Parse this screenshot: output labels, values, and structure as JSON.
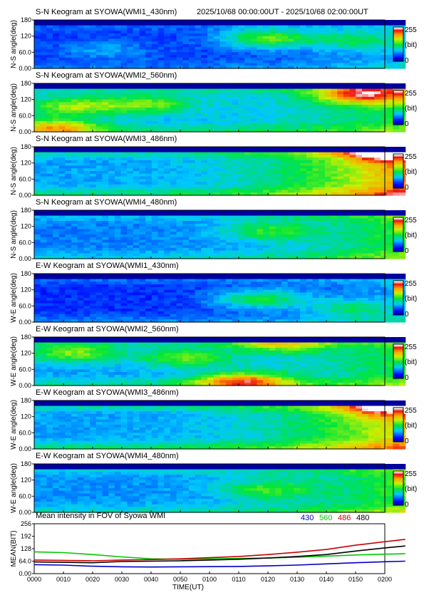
{
  "header": {
    "time_range": "2025/10/68 00:00:00UT - 2025/10/68 02:00:00UT"
  },
  "colors": {
    "w430": "#0000c8",
    "w560": "#00c800",
    "w486": "#c80000",
    "w480": "#000000"
  },
  "chart_data": [
    {
      "type": "heatmap",
      "title": "S-N Keogram at SYOWA(WMI1_430nm)",
      "ylabel": "N-S angle(deg)",
      "yticks": [
        "180",
        "120",
        "60.0",
        "0.00"
      ],
      "ylim": [
        0,
        180
      ],
      "colorbar": {
        "min_label": "0",
        "max_label": "255",
        "unit": "(bit)"
      },
      "data_end_minute": 127,
      "profile": {
        "base": 0.18,
        "edge": 0.08,
        "late": 0.15,
        "events": [
          [
            0.62,
            0.65,
            0.35
          ],
          [
            0.18,
            0.4,
            0.12
          ],
          [
            0.85,
            0.6,
            0.2
          ]
        ]
      }
    },
    {
      "type": "heatmap",
      "title": "S-N Keogram at SYOWA(WMI2_560nm)",
      "ylabel": "N-S angle(deg)",
      "yticks": [
        "180",
        "120",
        "60.0",
        "0.00"
      ],
      "ylim": [
        0,
        180
      ],
      "colorbar": {
        "min_label": "0",
        "max_label": "255",
        "unit": "(bit)"
      },
      "data_end_minute": 127,
      "profile": {
        "base": 0.32,
        "edge": 0.14,
        "late": 0.2,
        "events": [
          [
            0.1,
            0.55,
            0.3
          ],
          [
            0.3,
            0.6,
            0.25
          ],
          [
            0.88,
            0.8,
            0.5
          ],
          [
            0.05,
            0.1,
            0.4
          ]
        ]
      }
    },
    {
      "type": "heatmap",
      "title": "S-N Keogram at SYOWA(WMI3_486nm)",
      "ylabel": "N-S angle(deg)",
      "yticks": [
        "180",
        "120",
        "60.0",
        "0.00"
      ],
      "ylim": [
        0,
        180
      ],
      "colorbar": {
        "min_label": "0",
        "max_label": "255",
        "unit": "(bit)"
      },
      "data_end_minute": 127,
      "profile": {
        "base": 0.3,
        "edge": 0.18,
        "late": 0.55,
        "events": [
          [
            0.95,
            0.95,
            0.5
          ]
        ]
      }
    },
    {
      "type": "heatmap",
      "title": "S-N Keogram at SYOWA(WMI4_480nm)",
      "ylabel": "N-S angle(deg)",
      "yticks": [
        "180",
        "120",
        "60.0",
        "0.00"
      ],
      "ylim": [
        0,
        180
      ],
      "colorbar": {
        "min_label": "0",
        "max_label": "255",
        "unit": "(bit)"
      },
      "data_end_minute": 127,
      "profile": {
        "base": 0.26,
        "edge": 0.12,
        "late": 0.3,
        "events": [
          [
            0.62,
            0.6,
            0.2
          ]
        ]
      }
    },
    {
      "type": "heatmap",
      "title": "E-W Keogram at SYOWA(WMI1_430nm)",
      "ylabel": "W-E angle(deg)",
      "yticks": [
        "180",
        "120",
        "60.0",
        "0.00"
      ],
      "ylim": [
        0,
        180
      ],
      "colorbar": {
        "min_label": "0",
        "max_label": "255",
        "unit": "(bit)"
      },
      "data_end_minute": 127,
      "profile": {
        "base": 0.17,
        "edge": 0.12,
        "late": 0.14,
        "events": [
          [
            0.6,
            0.5,
            0.3
          ],
          [
            0.85,
            0.3,
            0.2
          ]
        ]
      }
    },
    {
      "type": "heatmap",
      "title": "E-W Keogram at SYOWA(WMI2_560nm)",
      "ylabel": "W-E angle(deg)",
      "yticks": [
        "180",
        "120",
        "60.0",
        "0.00"
      ],
      "ylim": [
        0,
        180
      ],
      "colorbar": {
        "min_label": "0",
        "max_label": "255",
        "unit": "(bit)"
      },
      "data_end_minute": 127,
      "profile": {
        "base": 0.3,
        "edge": 0.16,
        "late": 0.22,
        "events": [
          [
            0.1,
            0.7,
            0.3
          ],
          [
            0.4,
            0.6,
            0.25
          ],
          [
            0.65,
            0.9,
            0.3
          ],
          [
            0.55,
            0.1,
            0.5
          ]
        ]
      }
    },
    {
      "type": "heatmap",
      "title": "E-W Keogram at SYOWA(WMI3_486nm)",
      "ylabel": "W-E angle(deg)",
      "yticks": [
        "180",
        "120",
        "60.0",
        "0.00"
      ],
      "ylim": [
        0,
        180
      ],
      "colorbar": {
        "min_label": "0",
        "max_label": "255",
        "unit": "(bit)"
      },
      "data_end_minute": 127,
      "profile": {
        "base": 0.3,
        "edge": 0.2,
        "late": 0.45,
        "events": [
          [
            0.95,
            0.9,
            0.4
          ]
        ]
      }
    },
    {
      "type": "heatmap",
      "title": "E-W Keogram at SYOWA(WMI4_480nm)",
      "ylabel": "W-E angle(deg)",
      "yticks": [
        "180",
        "120",
        "60.0",
        "0.00"
      ],
      "ylim": [
        0,
        180
      ],
      "colorbar": {
        "min_label": "0",
        "max_label": "255",
        "unit": "(bit)"
      },
      "data_end_minute": 127,
      "profile": {
        "base": 0.28,
        "edge": 0.14,
        "late": 0.28,
        "events": [
          [
            0.62,
            0.5,
            0.2
          ]
        ]
      }
    },
    {
      "type": "line",
      "title": "Mean intensity in FOV of Syowa WMI",
      "ylabel": "MEAN(BIT)",
      "xlabel": "TIME(UT)",
      "yticks": [
        "256",
        "192",
        "128",
        "64.0",
        "0.00"
      ],
      "ylim": [
        0,
        256
      ],
      "xlim": [
        0,
        120
      ],
      "xticks": [
        "0000",
        "0010",
        "0020",
        "0030",
        "0040",
        "0050",
        "0100",
        "0110",
        "0120",
        "0130",
        "0140",
        "0150",
        "0200"
      ],
      "x": [
        0,
        10,
        20,
        30,
        40,
        50,
        60,
        70,
        80,
        90,
        100,
        110,
        120,
        127
      ],
      "series": [
        {
          "name": "430",
          "values": [
            46,
            44,
            38,
            35,
            34,
            35,
            36,
            37,
            40,
            44,
            50,
            56,
            61,
            64
          ]
        },
        {
          "name": "560",
          "values": [
            112,
            108,
            98,
            86,
            76,
            74,
            76,
            78,
            80,
            84,
            90,
            96,
            100,
            102
          ]
        },
        {
          "name": "486",
          "values": [
            70,
            68,
            66,
            70,
            72,
            76,
            82,
            88,
            98,
            110,
            124,
            146,
            164,
            176
          ]
        },
        {
          "name": "480",
          "values": [
            60,
            58,
            56,
            62,
            64,
            66,
            70,
            74,
            80,
            88,
            98,
            116,
            132,
            142
          ]
        }
      ]
    }
  ]
}
